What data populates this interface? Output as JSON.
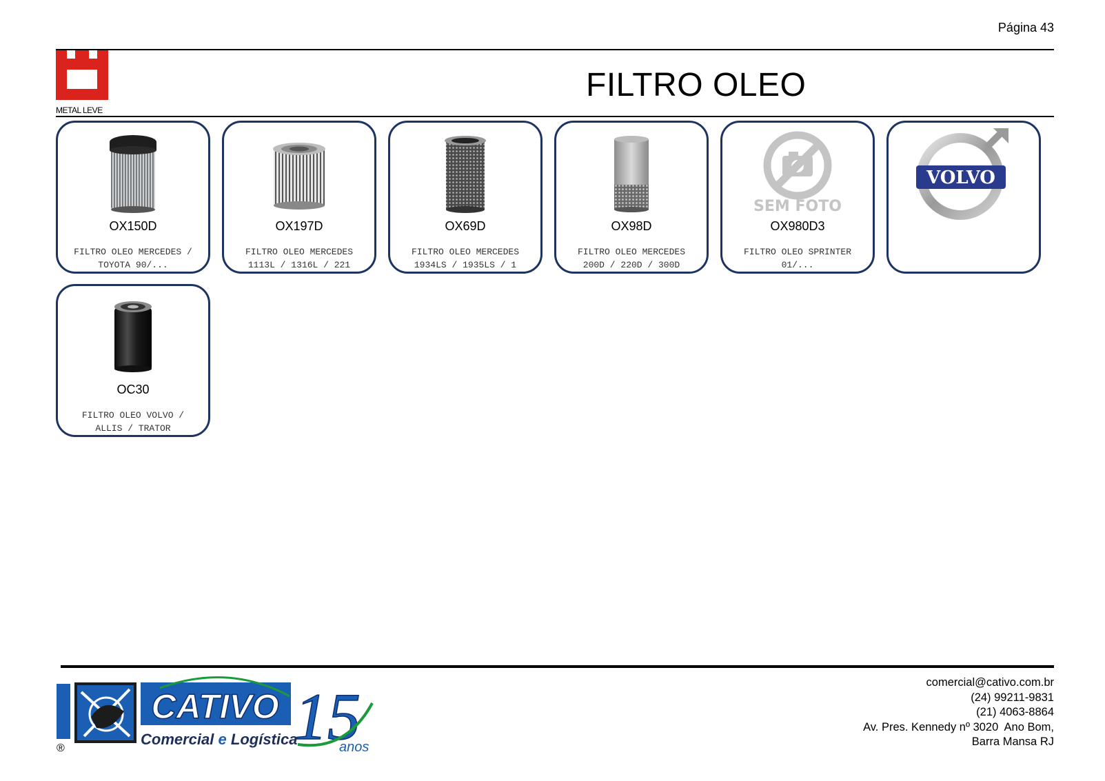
{
  "page": {
    "number_label": "Página 43",
    "title": "FILTRO OLEO"
  },
  "brand": {
    "label": "METAL LEVE",
    "color": "#d9231c"
  },
  "products": [
    {
      "code": "OX150D",
      "desc_line1": "FILTRO OLEO MERCEDES /",
      "desc_line2": "TOYOTA 90/...",
      "image": "oil-filter-pleated-dark-cap"
    },
    {
      "code": "OX197D",
      "desc_line1": "FILTRO OLEO MERCEDES",
      "desc_line2": "1113L / 1316L / 221",
      "image": "oil-filter-pleated-wide"
    },
    {
      "code": "OX69D",
      "desc_line1": "FILTRO OLEO MERCEDES",
      "desc_line2": "1934LS / 1935LS / 1",
      "image": "oil-filter-mesh"
    },
    {
      "code": "OX98D",
      "desc_line1": "FILTRO OLEO MERCEDES",
      "desc_line2": "200D / 220D / 300D",
      "image": "oil-filter-cartridge"
    },
    {
      "code": "OX980D3",
      "desc_line1": "FILTRO OLEO SPRINTER",
      "desc_line2": "01/...",
      "image": "no-photo-icon",
      "no_photo_label": "SEM FOTO"
    },
    {
      "code": "",
      "desc_line1": "",
      "desc_line2": "",
      "image": "volvo-logo",
      "logo_text": "VOLVO"
    },
    {
      "code": "OC30",
      "desc_line1": "FILTRO OLEO VOLVO /",
      "desc_line2": "ALLIS / TRATOR",
      "image": "spin-on-oil-filter"
    }
  ],
  "footer": {
    "logo_text": "CATIVO",
    "logo_subtitle_a": "Comercial",
    "logo_subtitle_e": "e",
    "logo_subtitle_b": "Logística",
    "anniversary_number": "15",
    "anniversary_word": "anos",
    "registered_mark": "®",
    "email": "comercial@cativo.com.br",
    "phone1": "(24) 99211-9831",
    "phone2": "(21) 4063-8864",
    "address_line1": "Av. Pres. Kennedy nº 3020  Ano Bom,",
    "address_line2": "Barra Mansa RJ"
  },
  "colors": {
    "card_border": "#1d3461",
    "cativo_blue": "#1a5fb4",
    "cativo_green": "#1a9a3a"
  }
}
